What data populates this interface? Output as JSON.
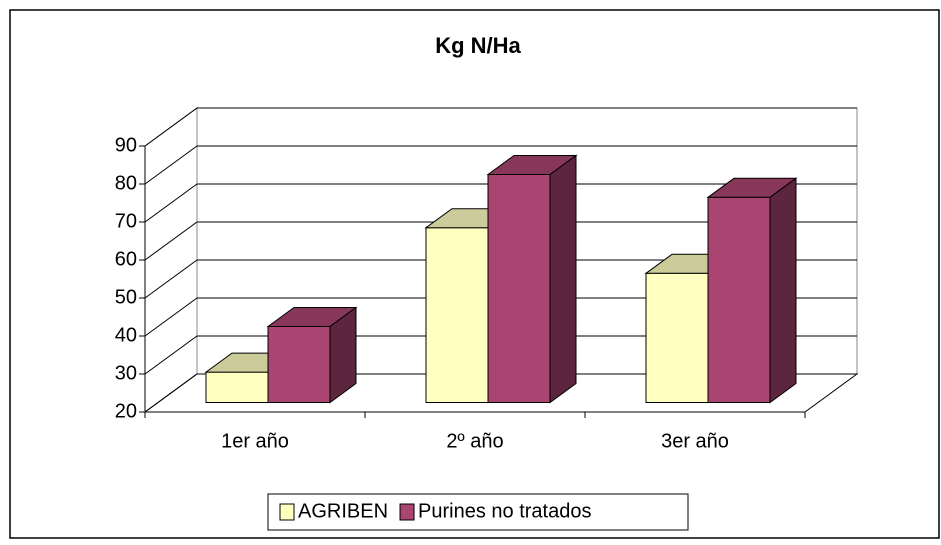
{
  "chart_data": {
    "type": "bar",
    "title": "Kg N/Ha",
    "categories": [
      "1er año",
      "2º año",
      "3er año"
    ],
    "series": [
      {
        "name": "AGRIBEN",
        "color": "#ffffc0",
        "values": [
          28,
          66,
          54
        ]
      },
      {
        "name": "Purines no tratados",
        "color": "#a94570",
        "values": [
          40,
          80,
          74
        ]
      }
    ],
    "ylim": [
      20,
      90
    ],
    "yticks": [
      20,
      30,
      40,
      50,
      60,
      70,
      80,
      90
    ],
    "grid": true,
    "legend": "bottom"
  }
}
